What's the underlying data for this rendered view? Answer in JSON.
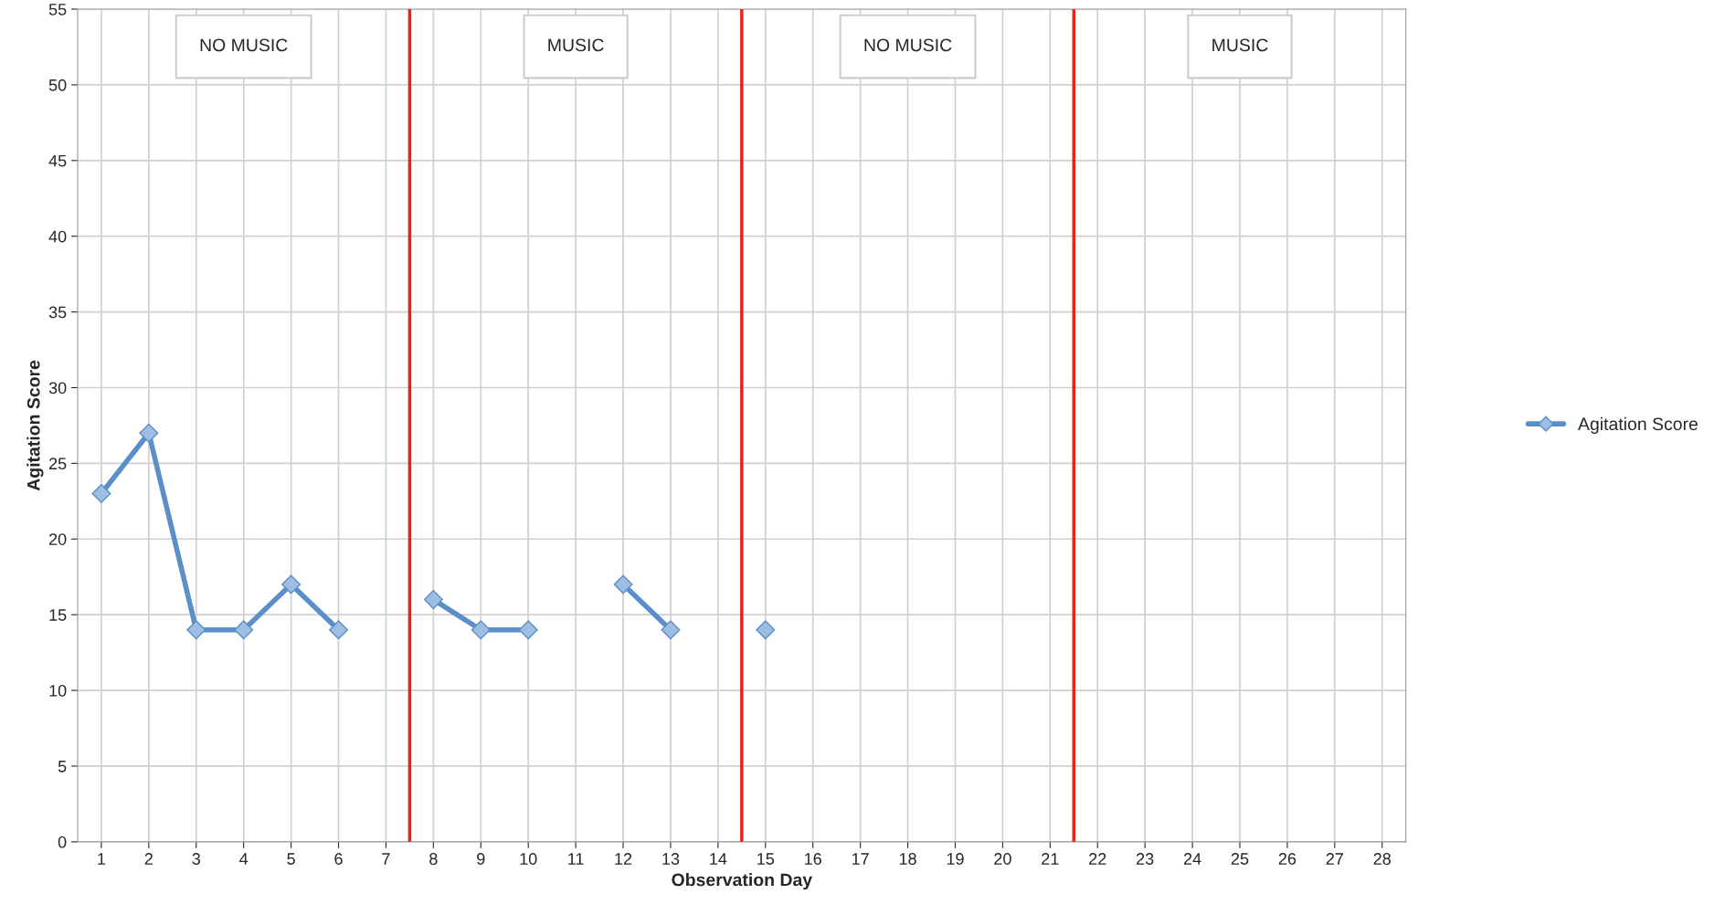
{
  "chart_data": {
    "type": "line",
    "xlabel": "Observation Day",
    "ylabel": "Agitation Score",
    "x": [
      1,
      2,
      3,
      4,
      5,
      6,
      7,
      8,
      9,
      10,
      11,
      12,
      13,
      14,
      15
    ],
    "xlim": [
      0.5,
      28.5
    ],
    "xticks": [
      1,
      2,
      3,
      4,
      5,
      6,
      7,
      8,
      9,
      10,
      11,
      12,
      13,
      14,
      15,
      16,
      17,
      18,
      19,
      20,
      21,
      22,
      23,
      24,
      25,
      26,
      27,
      28
    ],
    "ylim": [
      0,
      55
    ],
    "yticks": [
      0,
      5,
      10,
      15,
      20,
      25,
      30,
      35,
      40,
      45,
      50,
      55
    ],
    "series": [
      {
        "name": "Agitation Score",
        "color": "#5b8fc9",
        "values": [
          23,
          27,
          14,
          14,
          17,
          14,
          null,
          16,
          14,
          14,
          null,
          17,
          14,
          null,
          14
        ]
      }
    ],
    "ref_lines": [
      {
        "axis": "x",
        "value": 7.5,
        "color": "#e8231f"
      },
      {
        "axis": "x",
        "value": 14.5,
        "color": "#e8231f"
      },
      {
        "axis": "x",
        "value": 21.5,
        "color": "#e8231f"
      }
    ],
    "annotations": [
      "NO MUSIC",
      "MUSIC",
      "NO MUSIC",
      "MUSIC"
    ],
    "grid": true,
    "legend": "right",
    "marker": "diamond",
    "line_style": "solid"
  }
}
